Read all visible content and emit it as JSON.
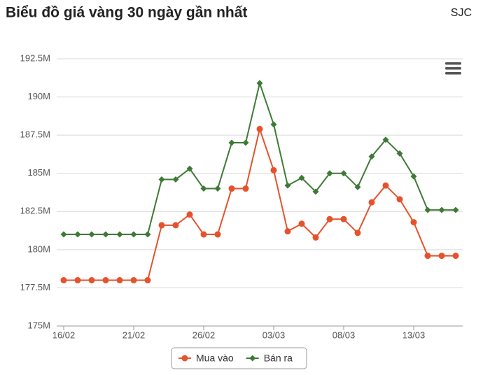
{
  "chart_data": {
    "type": "line",
    "title": "Biểu đồ giá vàng 30 ngày gần nhất",
    "subtitle": "SJC",
    "categories": [
      "16/02",
      null,
      null,
      null,
      null,
      "21/02",
      null,
      null,
      null,
      null,
      "26/02",
      null,
      null,
      null,
      null,
      "03/03",
      null,
      null,
      null,
      null,
      "08/03",
      null,
      null,
      null,
      null,
      "13/03",
      null,
      null,
      null
    ],
    "series": [
      {
        "name": "Mua vào",
        "color": "#e4532d",
        "marker": "circle",
        "values": [
          178000000,
          178000000,
          178000000,
          178000000,
          178000000,
          178000000,
          178000000,
          181600000,
          181600000,
          182300000,
          181000000,
          181000000,
          184000000,
          184000000,
          187900000,
          185200000,
          181200000,
          181700000,
          180800000,
          182000000,
          182000000,
          181100000,
          183100000,
          184200000,
          183300000,
          181800000,
          179600000,
          179600000,
          179600000
        ]
      },
      {
        "name": "Bán ra",
        "color": "#3e7a35",
        "marker": "diamond",
        "values": [
          181000000,
          181000000,
          181000000,
          181000000,
          181000000,
          181000000,
          181000000,
          184600000,
          184600000,
          185300000,
          184000000,
          184000000,
          187000000,
          187000000,
          190900000,
          188200000,
          184200000,
          184700000,
          183800000,
          185000000,
          185000000,
          184100000,
          186100000,
          187200000,
          186300000,
          184800000,
          182600000,
          182600000,
          182600000
        ]
      }
    ],
    "ylim": [
      175000000,
      192500000
    ],
    "yticks": [
      {
        "value": 175000000,
        "label": "175M"
      },
      {
        "value": 177500000,
        "label": "177.5M"
      },
      {
        "value": 180000000,
        "label": "180M"
      },
      {
        "value": 182500000,
        "label": "182.5M"
      },
      {
        "value": 185000000,
        "label": "185M"
      },
      {
        "value": 187500000,
        "label": "187.5M"
      },
      {
        "value": 190000000,
        "label": "190M"
      },
      {
        "value": 192500000,
        "label": "192.5M"
      }
    ],
    "grid": true,
    "legend": "bottom"
  }
}
